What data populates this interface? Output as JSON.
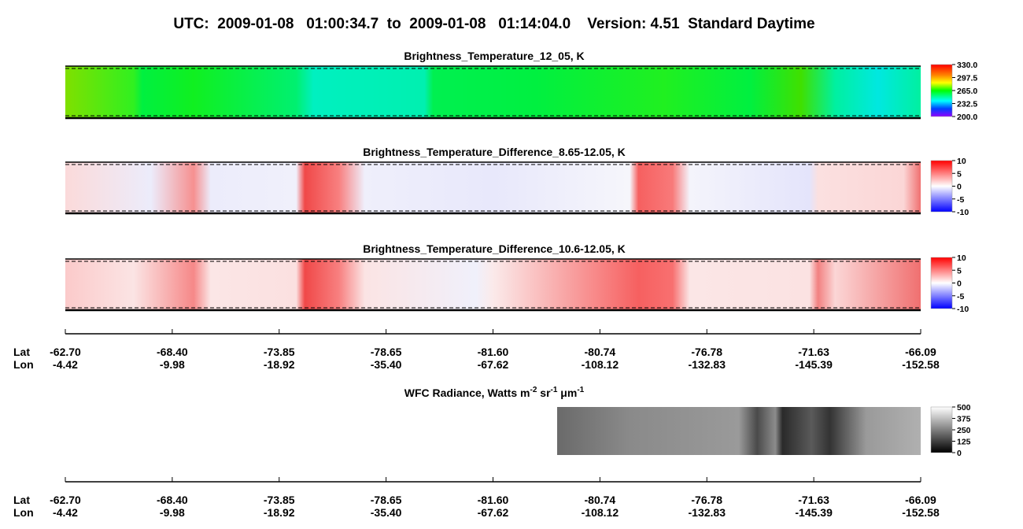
{
  "title": "UTC:  2009-01-08   01:00:34.7  to  2009-01-08   01:14:04.0    Version: 4.51  Standard Daytime",
  "panels": [
    {
      "title": "Brightness_Temperature_12_05, K",
      "colorbar": {
        "range": [
          200,
          330
        ],
        "ticks": [
          {
            "value": 330,
            "label": "330.0"
          },
          297.5,
          {
            "value": 265,
            "label": "265.0"
          },
          232.5,
          {
            "value": 200,
            "label": "200.0"
          }
        ]
      }
    },
    {
      "title": "Brightness_Temperature_Difference_8.65-12.05, K",
      "colorbar": {
        "range": [
          -10,
          10
        ],
        "ticks": [
          10,
          5,
          0,
          -5,
          -10
        ]
      }
    },
    {
      "title": "Brightness_Temperature_Difference_10.6-12.05, K",
      "colorbar": {
        "range": [
          -10,
          10
        ],
        "ticks": [
          10,
          5,
          0,
          -5,
          -10
        ]
      }
    }
  ],
  "location_axis": {
    "row_labels": [
      "Lat",
      "Lon"
    ],
    "lat": [
      "-62.70",
      "-68.40",
      "-73.85",
      "-78.65",
      "-81.60",
      "-80.74",
      "-76.78",
      "-71.63",
      "-66.09"
    ],
    "lon": [
      "-4.42",
      "-9.98",
      "-18.92",
      "-35.40",
      "-67.62",
      "-108.12",
      "-132.83",
      "-145.39",
      "-152.58"
    ]
  },
  "wfc": {
    "title_parts": [
      "WFC Radiance, Watts m",
      "-2",
      " sr",
      "-1",
      " μm",
      "-1"
    ],
    "colorbar": {
      "range": [
        0,
        500
      ],
      "ticks": [
        500,
        375,
        250,
        125,
        0
      ]
    }
  }
}
